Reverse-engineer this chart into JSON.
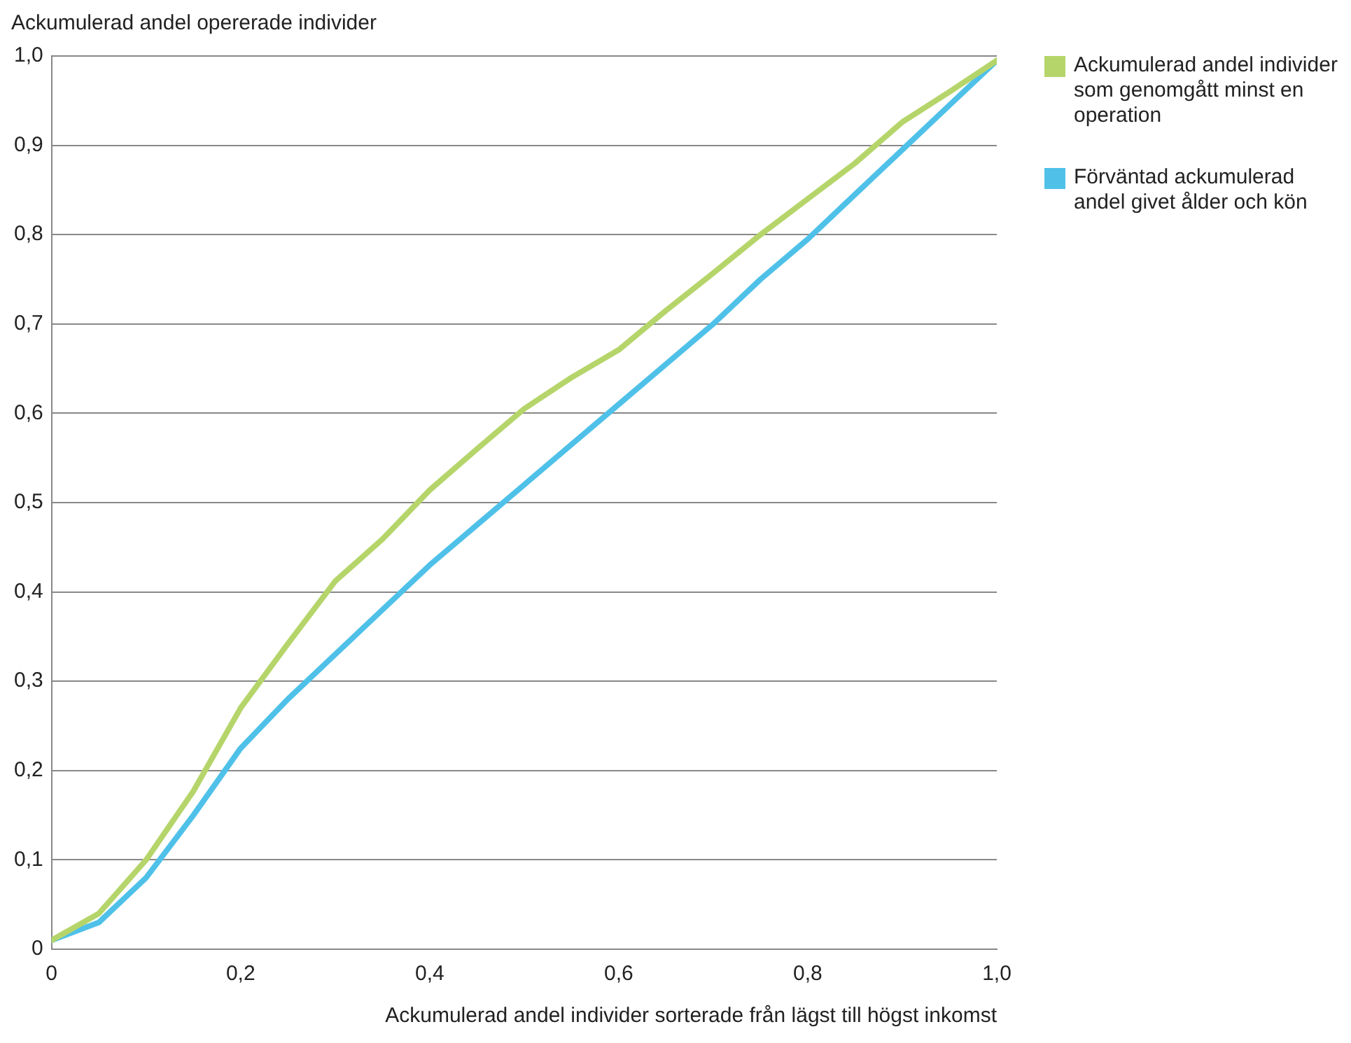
{
  "chart_data": {
    "type": "line",
    "ylabel": "Ackumulerad andel opererade individer",
    "xlabel": "Ackumulerad andel individer sorterade från lägst till högst inkomst",
    "x": [
      0,
      0.05,
      0.1,
      0.15,
      0.2,
      0.25,
      0.3,
      0.35,
      0.4,
      0.45,
      0.5,
      0.55,
      0.6,
      0.65,
      0.7,
      0.75,
      0.8,
      0.85,
      0.9,
      0.95,
      1.0
    ],
    "series": [
      {
        "name": "Ackumulerad andel individer som genomgått minst en operation",
        "color": "#b5d56a",
        "values": [
          0.01,
          0.04,
          0.1,
          0.177,
          0.27,
          0.342,
          0.412,
          0.459,
          0.514,
          0.56,
          0.605,
          0.64,
          0.671,
          0.715,
          0.757,
          0.8,
          0.84,
          0.88,
          0.926,
          0.96,
          0.995
        ]
      },
      {
        "name": "Förväntad ackumulerad andel givet ålder och kön",
        "color": "#4fc1e9",
        "values": [
          0.01,
          0.03,
          0.08,
          0.15,
          0.225,
          0.28,
          0.33,
          0.38,
          0.43,
          0.475,
          0.52,
          0.565,
          0.61,
          0.655,
          0.7,
          0.75,
          0.795,
          0.845,
          0.895,
          0.945,
          0.995
        ]
      }
    ],
    "xlim": [
      0,
      1
    ],
    "xticks": [
      0,
      {
        "value": 0.2,
        "label": "0,2"
      },
      {
        "value": 0.4,
        "label": "0,4"
      },
      {
        "value": 0.6,
        "label": "0,6"
      },
      {
        "value": 0.8,
        "label": "0,8"
      },
      {
        "value": 1,
        "label": "1,0"
      }
    ],
    "ylim": [
      0,
      1
    ],
    "yticks": [
      0,
      {
        "value": 0.1,
        "label": "0,1"
      },
      {
        "value": 0.2,
        "label": "0,2"
      },
      {
        "value": 0.3,
        "label": "0,3"
      },
      {
        "value": 0.4,
        "label": "0,4"
      },
      {
        "value": 0.5,
        "label": "0,5"
      },
      {
        "value": 0.6,
        "label": "0,6"
      },
      {
        "value": 0.7,
        "label": "0,7"
      },
      {
        "value": 0.8,
        "label": "0,8"
      },
      {
        "value": 0.9,
        "label": "0,9"
      },
      {
        "value": 1,
        "label": "1,0"
      }
    ],
    "grid": "y",
    "legend": "right",
    "marker": "none",
    "line_style": "solid"
  }
}
